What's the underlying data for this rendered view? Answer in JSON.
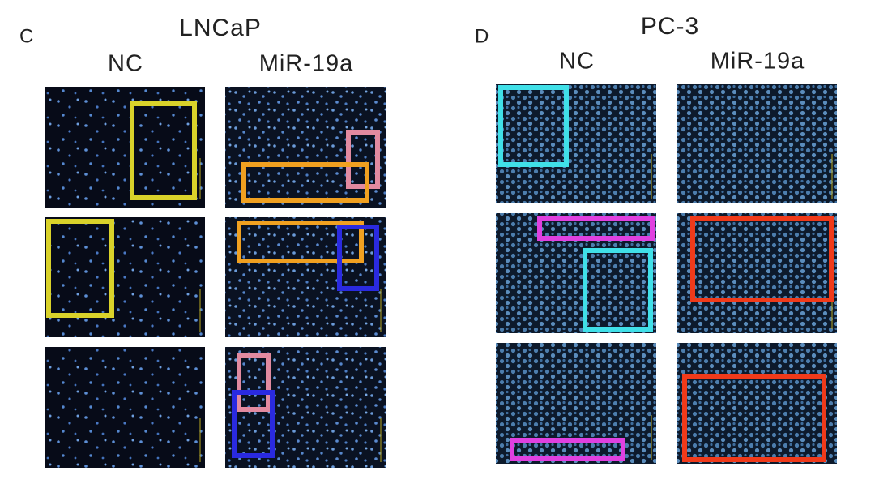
{
  "panels": [
    {
      "letter": "C",
      "title": "LNCaP",
      "columns": [
        "NC",
        "MiR-19a"
      ]
    },
    {
      "letter": "D",
      "title": "PC-3",
      "columns": [
        "NC",
        "MiR-19a"
      ]
    }
  ]
}
